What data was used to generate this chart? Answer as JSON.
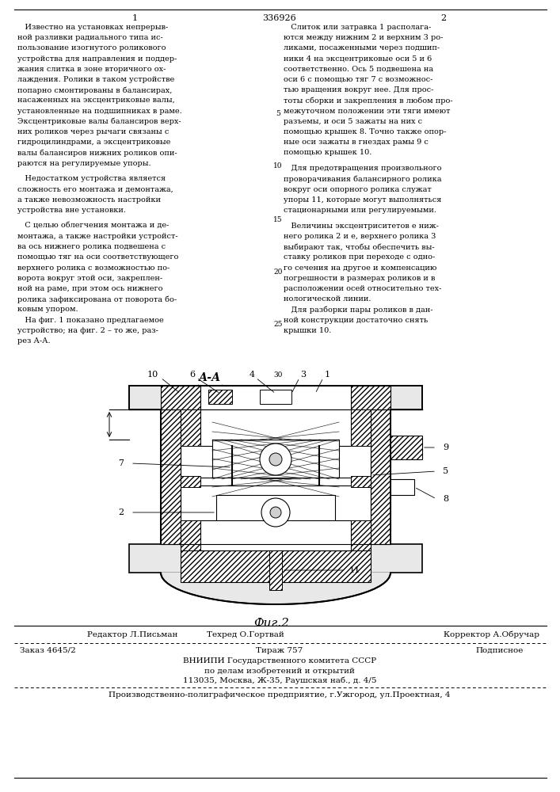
{
  "patent_number": "336926",
  "col1_number": "1",
  "col2_number": "2",
  "background_color": "#ffffff",
  "text_color": "#000000",
  "col1_text_lines": [
    "   Известно на установках непрерыв-",
    "ной разливки радиального типа ис-",
    "пользование изогнутого роликового",
    "устройства для направления и поддер-",
    "жания слитка в зоне вторичного ох-",
    "лаждения. Ролики в таком устройстве",
    "попарно смонтированы в балансирах,",
    "насаженных на эксцентриковые валы,",
    "установленные на подшипниках в раме.",
    "Эксцентриковые валы балансиров верх-",
    "них роликов через рычаги связаны с",
    "гидроцилиндрами, а эксцентриковые",
    "валы балансиров нижних роликов опи-",
    "раются на регулируемые упоры.",
    "   Недостатком устройства является",
    "сложность его монтажа и демонтажа,",
    "а также невозможность настройки",
    "устройства вне установки.",
    "   С целью облегчения монтажа и де-",
    "монтажа, а также настройки устройст-",
    "ва ось нижнего ролика подвешена с",
    "помощью тяг на оси соответствующего",
    "верхнего ролика с возможностью по-",
    "ворота вокруг этой оси, закреплен-",
    "ной на раме, при этом ось нижнего",
    "ролика зафиксирована от поворота бо-",
    "ковым упором.",
    "   На фиг. 1 показано предлагаемое",
    "устройство; на фиг. 2 – то же, раз-",
    "рез А-А."
  ],
  "col2_text_lines": [
    "   Слиток или затравка 1 располага-",
    "ются между нижним 2 и верхним 3 ро-",
    "ликами, посаженными через подшип-",
    "ники 4 на эксцентриковые оси 5 и 6",
    "соответственно. Ось 5 подвешена на",
    "оси 6 с помощью тяг 7 с возможнос-",
    "тью вращения вокруг нее. Для прос-",
    "тоты сборки и закрепления в любом про-",
    "межуточном положении эти тяги имеют",
    "разъемы, и оси 5 зажаты на них с",
    "помощью крышек 8. Точно также опор-",
    "ные оси зажаты в гнездах рамы 9 с",
    "помощью крышек 10.",
    "   Для предотвращения произвольного",
    "проворачивания балансирного ролика",
    "вокруг оси опорного ролика служат",
    "упоры 11, которые могут выполняться",
    "стационарными или регулируемыми.",
    "   Величины эксцентриситетов е ниж-",
    "него ролика 2 и е, верхнего ролика 3",
    "выбирают так, чтобы обеспечить вы-",
    "ставку роликов при переходе с одно-",
    "го сечения на другое и компенсацию",
    "погрешности в размерах роликов и в",
    "расположении осей относительно тех-",
    "нологической линии.",
    "   Для разборки пары роликов в дан-",
    "ной конструкции достаточно снять",
    "крышки 10."
  ],
  "line_numbers": [
    "5",
    "10",
    "15",
    "20",
    "25",
    "30"
  ],
  "aa_label": "А-А",
  "fig2_label": "Фиг.2",
  "editor_label": "Редактор Л.Письман",
  "techred_label": "Техред О.Гортвай",
  "corrector_label": "Корректор А.Обручар",
  "order_label": "Заказ 4645/2",
  "tirazh_label": "Тираж 757",
  "podpisnoe_label": "Подписное",
  "vniip_line1": "ВНИИПИ Государственного комитета СССР",
  "vniip_line2": "по делам изобретений и открытий",
  "vniip_line3": "113035, Москва, Ж-35, Раушская наб., д. 4/5",
  "factory_line": "Производственно-полиграфическое предприятие, г.Ужгород, ул.Проектная, 4",
  "hatch_color": "#888888",
  "line_color": "#000000"
}
